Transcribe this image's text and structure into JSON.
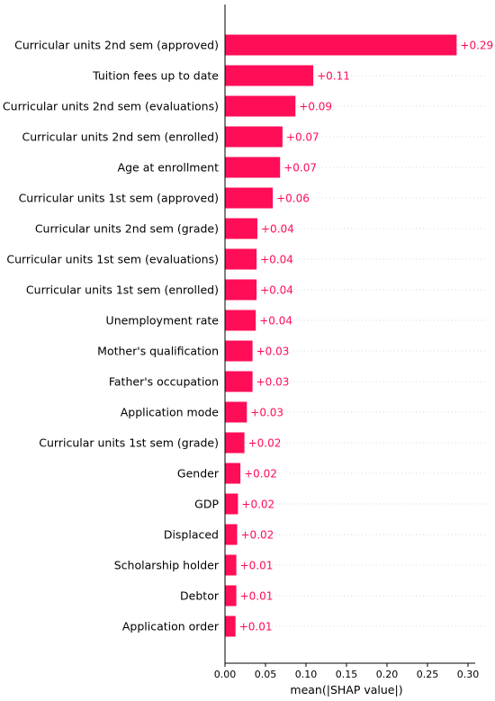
{
  "chart_data": {
    "type": "bar",
    "orientation": "horizontal",
    "title": "",
    "xlabel": "mean(|SHAP value|)",
    "ylabel": "",
    "xlim": [
      0,
      0.3
    ],
    "x_ticks": [
      "0.00",
      "0.05",
      "0.10",
      "0.15",
      "0.20",
      "0.25",
      "0.30"
    ],
    "grid": "horizontal dotted lines per row",
    "bar_color": "#ff0d57",
    "categories": [
      "Curricular units 2nd sem (approved)",
      "Tuition fees up to date",
      "Curricular units 2nd sem (evaluations)",
      "Curricular units 2nd sem (enrolled)",
      "Age at enrollment",
      "Curricular units 1st sem (approved)",
      "Curricular units 2nd sem (grade)",
      "Curricular units 1st sem (evaluations)",
      "Curricular units 1st sem (enrolled)",
      "Unemployment rate",
      "Mother's qualification",
      "Father's occupation",
      "Application mode",
      "Curricular units 1st sem (grade)",
      "Gender",
      "GDP",
      "Displaced",
      "Scholarship holder",
      "Debtor",
      "Application order"
    ],
    "values": [
      0.286,
      0.109,
      0.087,
      0.071,
      0.068,
      0.059,
      0.04,
      0.039,
      0.039,
      0.038,
      0.034,
      0.034,
      0.027,
      0.024,
      0.019,
      0.016,
      0.015,
      0.014,
      0.014,
      0.013
    ],
    "value_labels": [
      "+0.29",
      "+0.11",
      "+0.09",
      "+0.07",
      "+0.07",
      "+0.06",
      "+0.04",
      "+0.04",
      "+0.04",
      "+0.04",
      "+0.03",
      "+0.03",
      "+0.03",
      "+0.02",
      "+0.02",
      "+0.02",
      "+0.02",
      "+0.01",
      "+0.01",
      "+0.01"
    ]
  }
}
